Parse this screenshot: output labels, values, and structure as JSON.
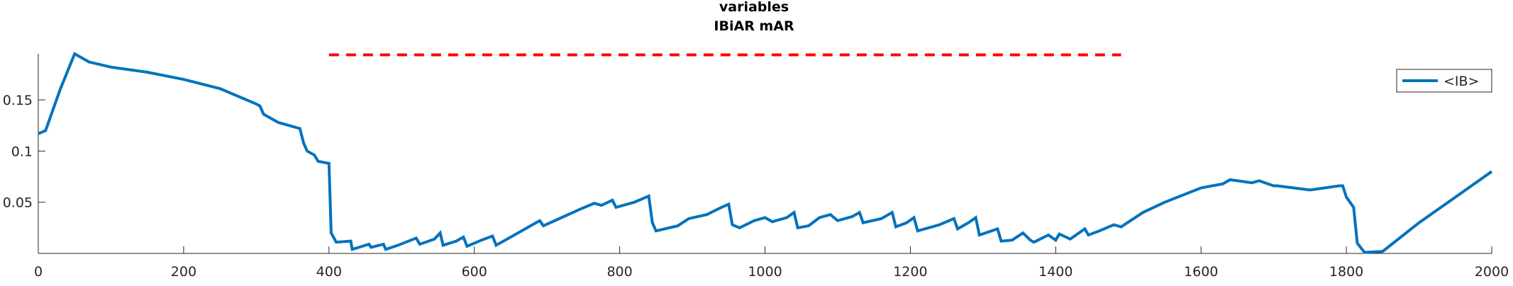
{
  "chart_data": {
    "type": "line",
    "title": "variables",
    "subtitle": "IBiAR mAR",
    "xlim": [
      0,
      2000
    ],
    "ylim": [
      0,
      0.195
    ],
    "xticks": [
      0,
      200,
      400,
      600,
      800,
      1000,
      1200,
      1400,
      1600,
      1800,
      2000
    ],
    "yticks": [
      0.05,
      0.1,
      0.15
    ],
    "legend": "upper right",
    "series": [
      {
        "name": "<IB>",
        "color": "#0072bd",
        "x": [
          0,
          10,
          30,
          50,
          70,
          100,
          150,
          200,
          250,
          300,
          305,
          310,
          330,
          360,
          365,
          370,
          380,
          385,
          400,
          403,
          410,
          430,
          432,
          455,
          458,
          475,
          478,
          495,
          520,
          525,
          545,
          553,
          557,
          575,
          585,
          590,
          610,
          625,
          630,
          660,
          680,
          690,
          695,
          720,
          745,
          765,
          775,
          790,
          795,
          820,
          840,
          845,
          850,
          880,
          895,
          920,
          940,
          950,
          955,
          965,
          985,
          1000,
          1010,
          1030,
          1040,
          1045,
          1060,
          1075,
          1090,
          1100,
          1120,
          1130,
          1135,
          1160,
          1175,
          1180,
          1195,
          1205,
          1210,
          1240,
          1260,
          1265,
          1280,
          1290,
          1295,
          1320,
          1325,
          1340,
          1355,
          1365,
          1370,
          1390,
          1400,
          1405,
          1420,
          1440,
          1445,
          1460,
          1480,
          1490,
          1520,
          1550,
          1600,
          1630,
          1640,
          1670,
          1680,
          1700,
          1705,
          1750,
          1790,
          1795,
          1800,
          1810,
          1815,
          1825,
          1850,
          1900,
          1950,
          2000
        ],
        "values": [
          0.117,
          0.12,
          0.16,
          0.195,
          0.187,
          0.182,
          0.177,
          0.17,
          0.161,
          0.146,
          0.144,
          0.136,
          0.128,
          0.122,
          0.108,
          0.1,
          0.096,
          0.09,
          0.088,
          0.02,
          0.011,
          0.012,
          0.004,
          0.009,
          0.006,
          0.009,
          0.004,
          0.008,
          0.015,
          0.009,
          0.014,
          0.02,
          0.008,
          0.012,
          0.016,
          0.007,
          0.013,
          0.017,
          0.008,
          0.02,
          0.028,
          0.032,
          0.027,
          0.035,
          0.043,
          0.049,
          0.047,
          0.052,
          0.045,
          0.05,
          0.056,
          0.03,
          0.022,
          0.027,
          0.034,
          0.038,
          0.045,
          0.048,
          0.028,
          0.025,
          0.032,
          0.035,
          0.031,
          0.035,
          0.04,
          0.025,
          0.027,
          0.035,
          0.038,
          0.032,
          0.036,
          0.04,
          0.03,
          0.034,
          0.04,
          0.026,
          0.03,
          0.035,
          0.022,
          0.028,
          0.034,
          0.024,
          0.03,
          0.035,
          0.018,
          0.024,
          0.012,
          0.013,
          0.02,
          0.013,
          0.011,
          0.018,
          0.013,
          0.019,
          0.014,
          0.024,
          0.018,
          0.022,
          0.028,
          0.026,
          0.04,
          0.05,
          0.064,
          0.068,
          0.072,
          0.069,
          0.071,
          0.066,
          0.066,
          0.062,
          0.066,
          0.066,
          0.055,
          0.045,
          0.01,
          0.001,
          0.002,
          0.03,
          0.055,
          0.08
        ]
      },
      {
        "color": "#ff0000",
        "x": [
          400,
          1490
        ],
        "values": [
          0.194,
          0.194
        ]
      }
    ]
  }
}
